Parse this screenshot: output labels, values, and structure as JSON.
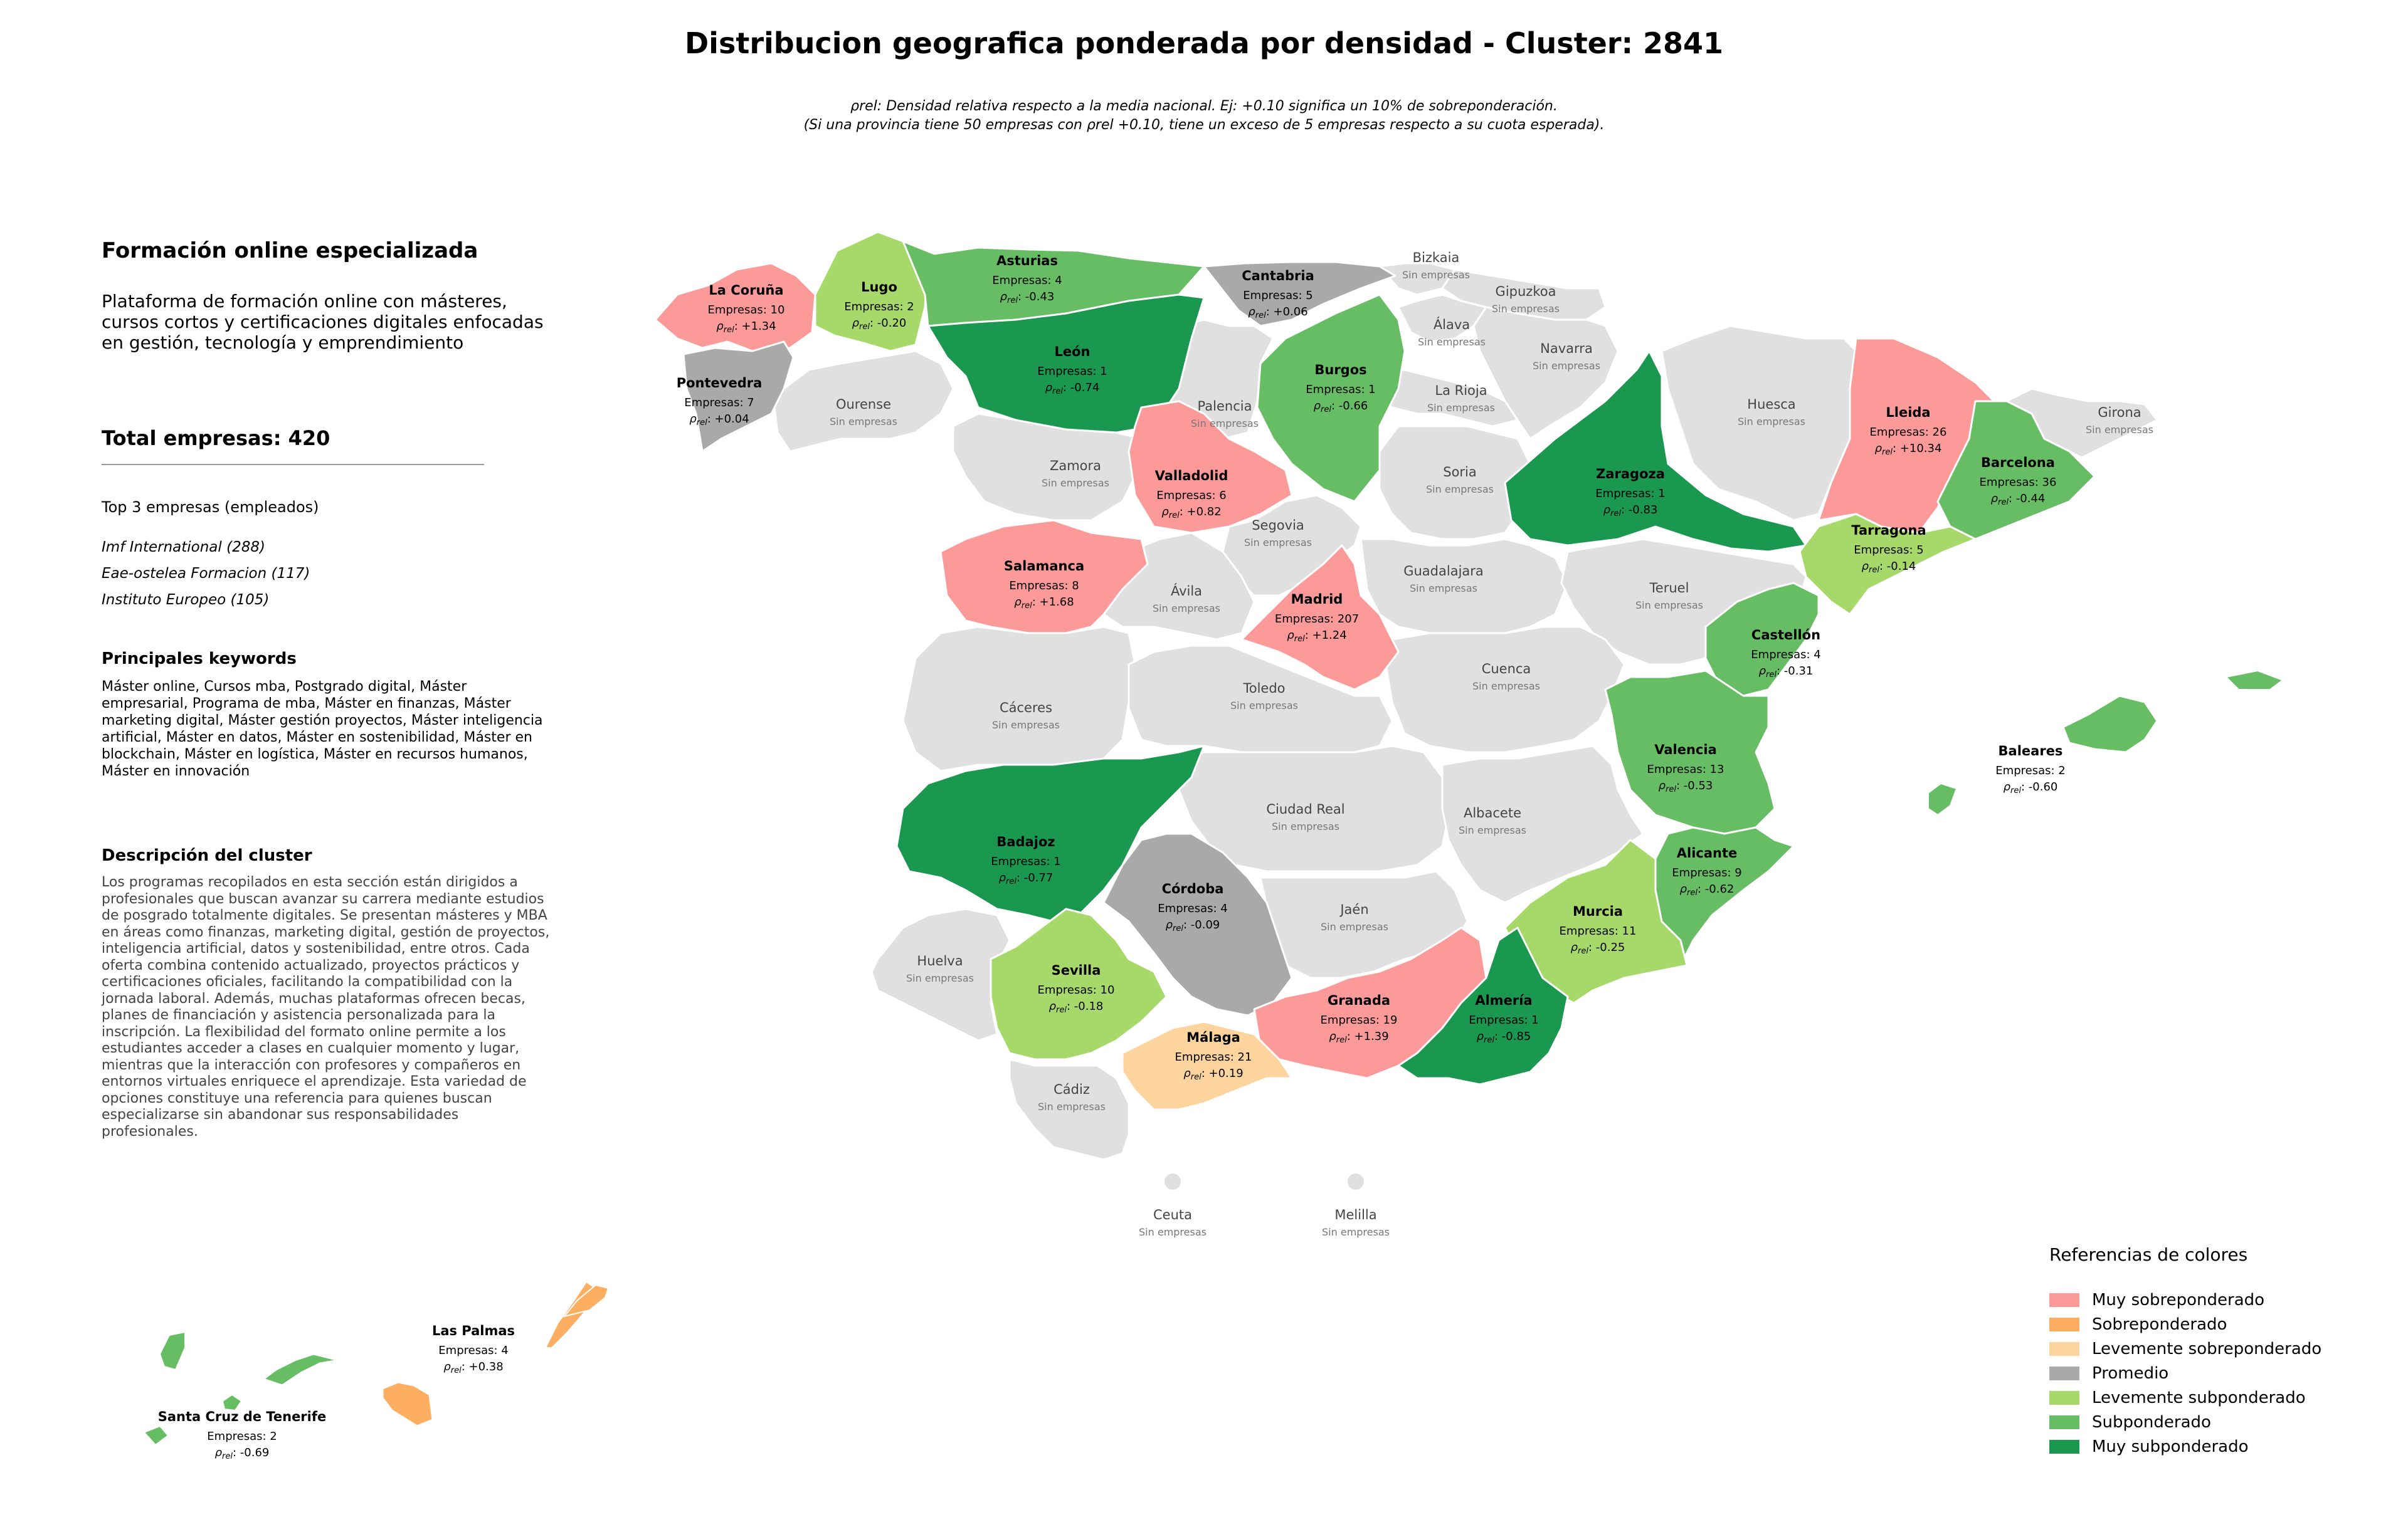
{
  "title": "Distribucion geografica ponderada por densidad - Cluster: 2841",
  "subtitle_line1": "ρrel: Densidad relativa respecto a la media nacional. Ej: +0.10 significa un 10% de sobreponderación.",
  "subtitle_line2": "(Si una provincia tiene 50 empresas con ρrel +0.10, tiene un exceso de 5 empresas respecto a su cuota esperada).",
  "panel": {
    "cluster_name": "Formación online especializada",
    "cluster_summary": "Plataforma de formación online con másteres, cursos cortos y certificaciones digitales enfocadas en gestión, tecnología y emprendimiento",
    "total": "Total empresas: 420",
    "top3_heading": "Top 3 empresas (empleados)",
    "top3": [
      "Imf International (288)",
      "Eae-ostelea Formacion (117)",
      "Instituto Europeo (105)"
    ],
    "keywords_heading": "Principales keywords",
    "keywords": "Máster online, Cursos mba, Postgrado digital, Máster empresarial, Programa de mba, Máster en finanzas, Máster marketing digital, Máster gestión proyectos, Máster inteligencia artificial, Máster en datos, Máster en sostenibilidad, Máster en blockchain, Máster en logística, Máster en recursos humanos, Máster en innovación",
    "description_heading": "Descripción del cluster",
    "description": "Los programas recopilados en esta sección están dirigidos a profesionales que buscan avanzar su carrera mediante estudios de posgrado totalmente digitales. Se presentan másteres y MBA en áreas como finanzas, marketing digital, gestión de proyectos, inteligencia artificial, datos y sostenibilidad, entre otros. Cada oferta combina contenido actualizado, proyectos prácticos y certificaciones oficiales, facilitando la compatibilidad con la jornada laboral. Además, muchas plataformas ofrecen becas, planes de financiación y asistencia personalizada para la inscripción. La flexibilidad del formato online permite a los estudiantes acceder a clases en cualquier momento y lugar, mientras que la interacción con profesores y compañeros en entornos virtuales enriquece el aprendizaje. Esta variedad de opciones constituye una referencia para quienes buscan especializarse sin abandonar sus responsabilidades profesionales."
  },
  "empty_label": "Sin empresas",
  "colors": {
    "muy_sobre": "#fb9a99",
    "sobre": "#fdae61",
    "lev_sobre": "#fdd49e",
    "promedio": "#a9a9a9",
    "lev_sub": "#a6d96a",
    "sub": "#66bd63",
    "muy_sub": "#1a9850",
    "sin": "#e0e0e0"
  },
  "legend": {
    "heading": "Referencias de colores",
    "items": [
      {
        "label": "Muy sobreponderado",
        "color": "#fb9a99"
      },
      {
        "label": "Sobreponderado",
        "color": "#fdae61"
      },
      {
        "label": "Levemente sobreponderado",
        "color": "#fdd49e"
      },
      {
        "label": "Promedio",
        "color": "#a9a9a9"
      },
      {
        "label": "Levemente subponderado",
        "color": "#a6d96a"
      },
      {
        "label": "Subponderado",
        "color": "#66bd63"
      },
      {
        "label": "Muy subponderado",
        "color": "#1a9850"
      }
    ]
  },
  "provinces": [
    {
      "name": "La Coruña",
      "empresas": "Empresas: 10",
      "rho": "+1.34",
      "cat": "muy_sobre"
    },
    {
      "name": "Lugo",
      "empresas": "Empresas: 2",
      "rho": "-0.20",
      "cat": "lev_sub"
    },
    {
      "name": "Asturias",
      "empresas": "Empresas: 4",
      "rho": "-0.43",
      "cat": "sub"
    },
    {
      "name": "Cantabria",
      "empresas": "Empresas: 5",
      "rho": "+0.06",
      "cat": "promedio"
    },
    {
      "name": "Pontevedra",
      "empresas": "Empresas: 7",
      "rho": "+0.04",
      "cat": "promedio"
    },
    {
      "name": "León",
      "empresas": "Empresas: 1",
      "rho": "-0.74",
      "cat": "muy_sub"
    },
    {
      "name": "Burgos",
      "empresas": "Empresas: 1",
      "rho": "-0.66",
      "cat": "sub"
    },
    {
      "name": "Valladolid",
      "empresas": "Empresas: 6",
      "rho": "+0.82",
      "cat": "muy_sobre"
    },
    {
      "name": "Zaragoza",
      "empresas": "Empresas: 1",
      "rho": "-0.83",
      "cat": "muy_sub"
    },
    {
      "name": "Lleida",
      "empresas": "Empresas: 26",
      "rho": "+10.34",
      "cat": "muy_sobre"
    },
    {
      "name": "Barcelona",
      "empresas": "Empresas: 36",
      "rho": "-0.44",
      "cat": "sub"
    },
    {
      "name": "Tarragona",
      "empresas": "Empresas: 5",
      "rho": "-0.14",
      "cat": "lev_sub"
    },
    {
      "name": "Salamanca",
      "empresas": "Empresas: 8",
      "rho": "+1.68",
      "cat": "muy_sobre"
    },
    {
      "name": "Madrid",
      "empresas": "Empresas: 207",
      "rho": "+1.24",
      "cat": "muy_sobre"
    },
    {
      "name": "Castellón",
      "empresas": "Empresas: 4",
      "rho": "-0.31",
      "cat": "sub"
    },
    {
      "name": "Valencia",
      "empresas": "Empresas: 13",
      "rho": "-0.53",
      "cat": "sub"
    },
    {
      "name": "Baleares",
      "empresas": "Empresas: 2",
      "rho": "-0.60",
      "cat": "sub"
    },
    {
      "name": "Badajoz",
      "empresas": "Empresas: 1",
      "rho": "-0.77",
      "cat": "muy_sub"
    },
    {
      "name": "Córdoba",
      "empresas": "Empresas: 4",
      "rho": "-0.09",
      "cat": "promedio"
    },
    {
      "name": "Alicante",
      "empresas": "Empresas: 9",
      "rho": "-0.62",
      "cat": "sub"
    },
    {
      "name": "Murcia",
      "empresas": "Empresas: 11",
      "rho": "-0.25",
      "cat": "lev_sub"
    },
    {
      "name": "Sevilla",
      "empresas": "Empresas: 10",
      "rho": "-0.18",
      "cat": "lev_sub"
    },
    {
      "name": "Granada",
      "empresas": "Empresas: 19",
      "rho": "+1.39",
      "cat": "muy_sobre"
    },
    {
      "name": "Almería",
      "empresas": "Empresas: 1",
      "rho": "-0.85",
      "cat": "muy_sub"
    },
    {
      "name": "Málaga",
      "empresas": "Empresas: 21",
      "rho": "+0.19",
      "cat": "lev_sobre"
    },
    {
      "name": "Las Palmas",
      "empresas": "Empresas: 4",
      "rho": "+0.38",
      "cat": "sobre"
    },
    {
      "name": "Santa Cruz de Tenerife",
      "empresas": "Empresas: 2",
      "rho": "-0.69",
      "cat": "sub"
    }
  ],
  "empty_provinces": [
    "Bizkaia",
    "Gipuzkoa",
    "Álava",
    "Navarra",
    "La Rioja",
    "Ourense",
    "Palencia",
    "Huesca",
    "Girona",
    "Zamora",
    "Soria",
    "Segovia",
    "Guadalajara",
    "Teruel",
    "Ávila",
    "Cáceres",
    "Toledo",
    "Cuenca",
    "Ciudad Real",
    "Albacete",
    "Jaén",
    "Huelva",
    "Cádiz",
    "Ceuta",
    "Melilla"
  ]
}
